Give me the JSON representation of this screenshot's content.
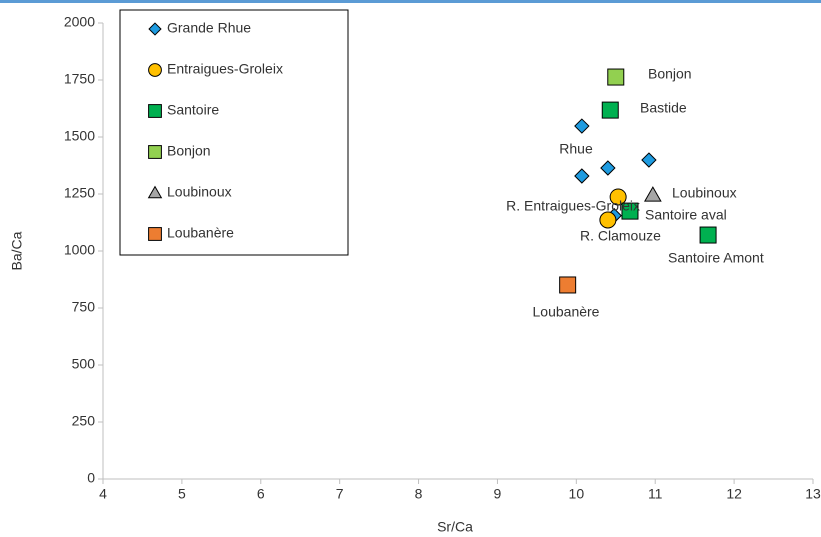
{
  "chart_data": {
    "type": "scatter",
    "x_label": "Sr/Ca",
    "y_label": "Ba/Ca",
    "xlim": [
      4,
      13
    ],
    "xticks": [
      4,
      5,
      6,
      7,
      8,
      9,
      10,
      11,
      12,
      13
    ],
    "ylim": [
      0,
      2000
    ],
    "yticks": [
      0,
      250,
      500,
      750,
      1000,
      1250,
      1500,
      1750,
      2000
    ],
    "grid": false,
    "legend": "upper left",
    "series": [
      {
        "name": "Grande Rhue",
        "color": "#1e9be0",
        "marker": "diamond",
        "x": [
          10.07,
          10.07,
          10.4,
          10.92,
          10.48
        ],
        "y": [
          1548,
          1329,
          1364,
          1399,
          1155
        ]
      },
      {
        "name": "Entraigues-Groleix",
        "color": "#ffc000",
        "marker": "circle",
        "x": [
          10.53,
          10.4
        ],
        "y": [
          1237,
          1136
        ]
      },
      {
        "name": "Santoire",
        "color": "#00b050",
        "marker": "square",
        "x": [
          10.43,
          10.68,
          11.67
        ],
        "y": [
          1618,
          1175,
          1070
        ]
      },
      {
        "name": "Bonjon",
        "color": "#92d050",
        "marker": "square",
        "x": [
          10.5
        ],
        "y": [
          1763
        ]
      },
      {
        "name": "Loubinoux",
        "color": "#a6a6a6",
        "marker": "triangle",
        "x": [
          10.97
        ],
        "y": [
          1245
        ]
      },
      {
        "name": "Loubanère",
        "color": "#ed7d31",
        "marker": "square",
        "x": [
          9.89
        ],
        "y": [
          851
        ]
      }
    ],
    "annotations": [
      "Bonjon",
      "Bastide",
      "Rhue",
      "Loubinoux",
      "R. Entraigues-Groleix",
      "Santoire aval",
      "R. Clamouze",
      "Santoire Amont",
      "Loubanère"
    ]
  }
}
